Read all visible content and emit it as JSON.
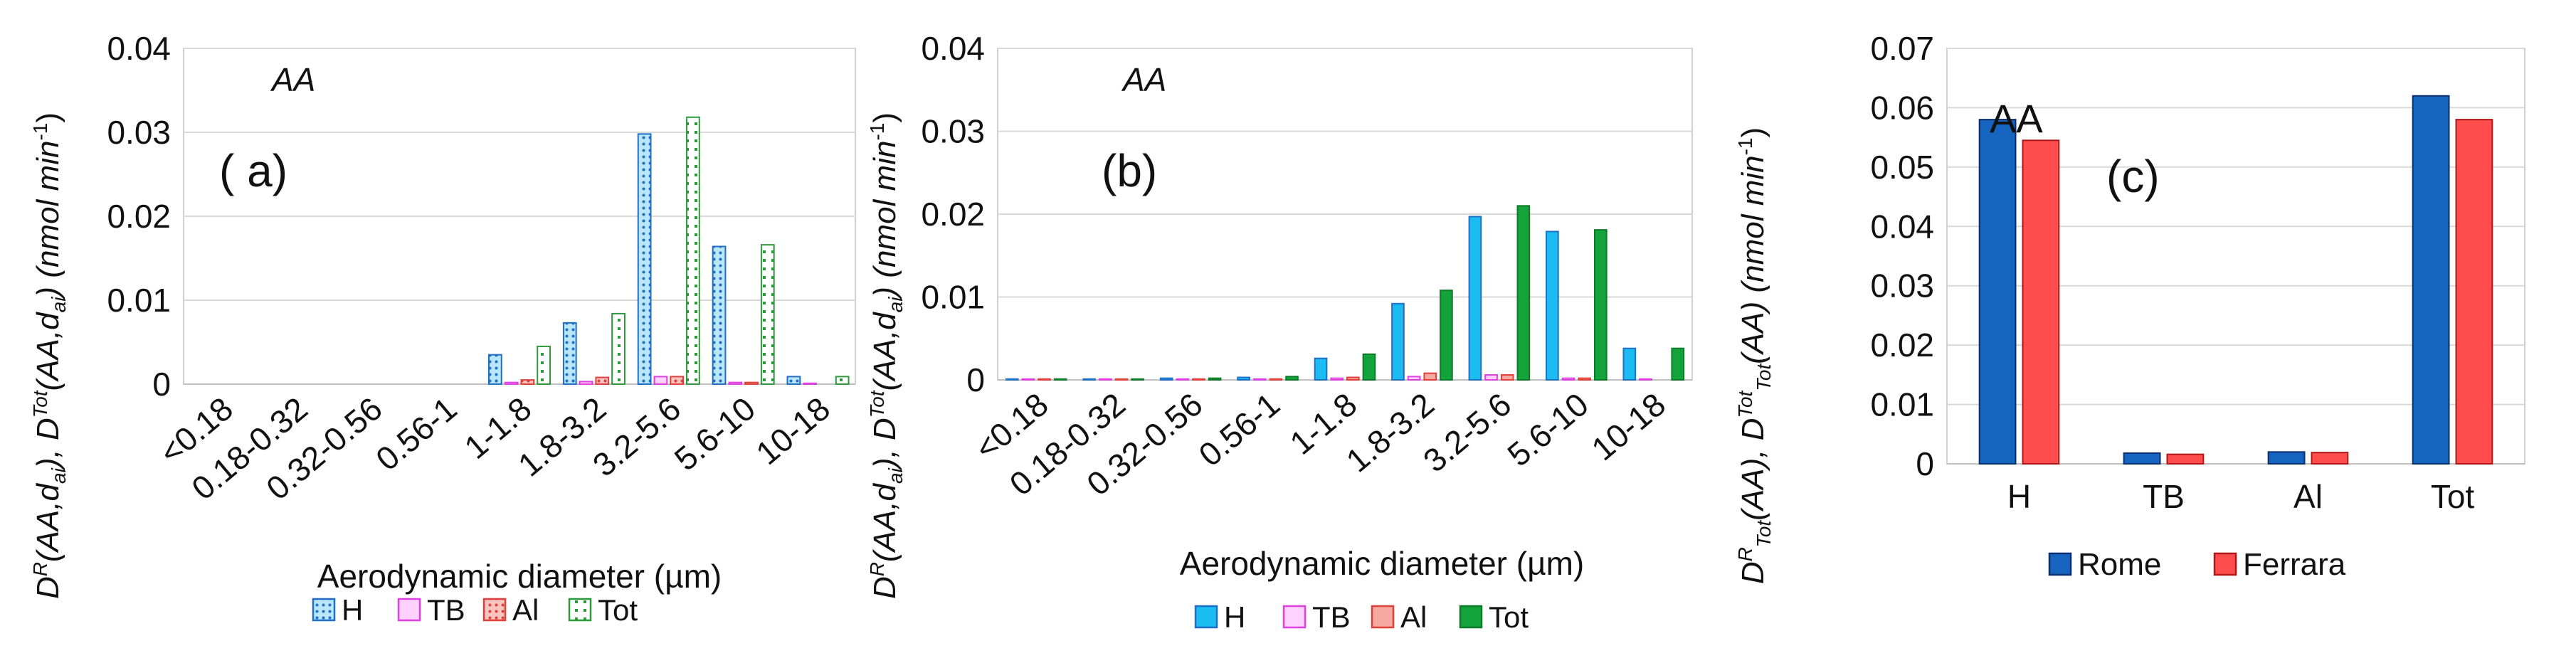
{
  "chart_data": [
    {
      "type": "bar",
      "panel_label": "( a)",
      "annotation": "AA",
      "ylabel_parts": {
        "a": "D",
        "b": "R",
        "c": "(AA,d",
        "d": "ai",
        "e": "), D",
        "f": "Tot",
        "g": "(AA,d",
        "h": "ai",
        "i": ") (nmol min",
        "j": "-1",
        "k": ")"
      },
      "xlabel": "Aerodynamic diameter (µm)",
      "ylim": [
        0,
        0.04
      ],
      "yticks": [
        "0",
        "0.01",
        "0.02",
        "0.03",
        "0.04"
      ],
      "categories": [
        "<0.18",
        "0.18-0.32",
        "0.32-0.56",
        "0.56-1",
        "1-1.8",
        "1.8-3.2",
        "3.2-5.6",
        "5.6-10",
        "10-18"
      ],
      "series": [
        {
          "name": "H",
          "values": [
            0,
            0,
            0,
            0,
            0.0035,
            0.0073,
            0.0298,
            0.0164,
            0.0009
          ],
          "fill": "#b9e6fb",
          "stroke": "#1f6fc6",
          "pattern": "dots-blue"
        },
        {
          "name": "TB",
          "values": [
            0,
            0,
            0,
            0,
            0.0002,
            0.0003,
            0.0009,
            0.0002,
            0.0001
          ],
          "fill": "#ffd2ff",
          "stroke": "#e040e0",
          "pattern": "none"
        },
        {
          "name": "Al",
          "values": [
            0,
            0,
            0,
            0,
            0.0005,
            0.0008,
            0.0009,
            0.0002,
            0
          ],
          "fill": "#f8c4c0",
          "stroke": "#e0403a",
          "pattern": "dots-red"
        },
        {
          "name": "Tot",
          "values": [
            0,
            0,
            0,
            0,
            0.0045,
            0.0084,
            0.0318,
            0.0166,
            0.0009
          ],
          "fill": "#ffffff",
          "stroke": "#2e9a3e",
          "pattern": "dots-green"
        }
      ]
    },
    {
      "type": "bar",
      "panel_label": "(b)",
      "annotation": "AA",
      "ylabel_parts": {
        "a": "D",
        "b": "R",
        "c": "(AA,d",
        "d": "ai",
        "e": "), D",
        "f": "Tot",
        "g": "(AA,d",
        "h": "ai",
        "i": ") (nmol min",
        "j": "-1",
        "k": ")"
      },
      "xlabel": "Aerodynamic diameter (µm)",
      "ylim": [
        0,
        0.04
      ],
      "yticks": [
        "0",
        "0.01",
        "0.02",
        "0.03",
        "0.04"
      ],
      "categories": [
        "<0.18",
        "0.18-0.32",
        "0.32-0.56",
        "0.56-1",
        "1-1.8",
        "1.8-3.2",
        "3.2-5.6",
        "5.6-10",
        "10-18"
      ],
      "series": [
        {
          "name": "H",
          "values": [
            0.0001,
            0.0001,
            0.0002,
            0.0003,
            0.0026,
            0.0092,
            0.0197,
            0.0179,
            0.0038
          ],
          "fill": "#1bbcf2",
          "stroke": "#1f6fc6",
          "pattern": "none"
        },
        {
          "name": "TB",
          "values": [
            0.0001,
            0.0001,
            0.0001,
            0.0001,
            0.0002,
            0.0004,
            0.0006,
            0.0002,
            0.0001
          ],
          "fill": "#ffd2ff",
          "stroke": "#e040e0",
          "pattern": "none"
        },
        {
          "name": "Al",
          "values": [
            0.0001,
            0.0001,
            0.0001,
            0.0001,
            0.0003,
            0.0008,
            0.0006,
            0.0002,
            0
          ],
          "fill": "#f7a8a0",
          "stroke": "#e0403a",
          "pattern": "none"
        },
        {
          "name": "Tot",
          "values": [
            0.0001,
            0.0001,
            0.0002,
            0.0004,
            0.0031,
            0.0108,
            0.021,
            0.0181,
            0.0038
          ],
          "fill": "#12a33a",
          "stroke": "#0e7a2a",
          "pattern": "none"
        }
      ]
    },
    {
      "type": "bar",
      "panel_label": "(c)",
      "annotation": "AA",
      "ylabel_parts": {
        "a": "D",
        "b": "R",
        "c": "Tot",
        "d": "(AA), D",
        "e": "Tot",
        "f": "Tot",
        "g": "(AA) (nmol min",
        "h": "-1",
        "i": ")"
      },
      "ylim": [
        0,
        0.07
      ],
      "yticks": [
        "0",
        "0.01",
        "0.02",
        "0.03",
        "0.04",
        "0.05",
        "0.06",
        "0.07"
      ],
      "categories": [
        "H",
        "TB",
        "Al",
        "Tot"
      ],
      "series": [
        {
          "name": "Rome",
          "values": [
            0.058,
            0.0018,
            0.002,
            0.062
          ],
          "fill": "#1565c0",
          "stroke": "#0b2e6e",
          "pattern": "none"
        },
        {
          "name": "Ferrara",
          "values": [
            0.0545,
            0.0016,
            0.0019,
            0.058
          ],
          "fill": "#ff4d4d",
          "stroke": "#b01818",
          "pattern": "none"
        }
      ]
    }
  ]
}
